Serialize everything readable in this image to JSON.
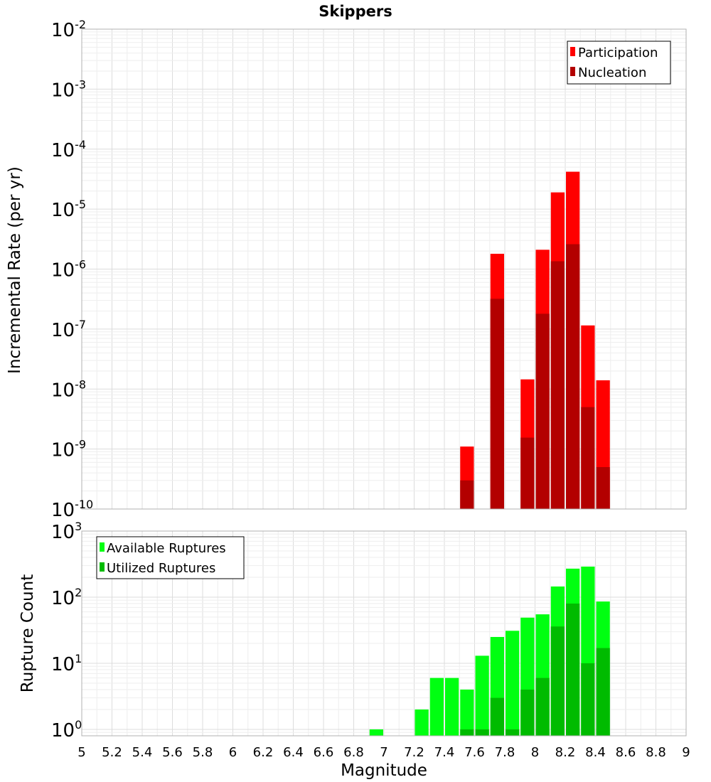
{
  "chart_data": [
    {
      "type": "bar",
      "title": "Skippers",
      "xlabel": "",
      "ylabel": "Incremental Rate (per yr)",
      "yscale": "log",
      "ylim": [
        1e-10,
        0.01
      ],
      "xlim": [
        5,
        9
      ],
      "bar_width": 0.1,
      "grid": true,
      "legend_position": "top-right",
      "series": [
        {
          "name": "Participation",
          "color": "#ff0000",
          "x": [
            7.55,
            7.75,
            7.95,
            8.05,
            8.15,
            8.25,
            8.35,
            8.45
          ],
          "values": [
            1.1e-09,
            1.8e-06,
            1.45e-08,
            2.1e-06,
            1.9e-05,
            4.2e-05,
            1.15e-07,
            1.4e-08
          ]
        },
        {
          "name": "Nucleation",
          "color": "#b30000",
          "x": [
            7.55,
            7.75,
            7.95,
            8.05,
            8.15,
            8.25,
            8.35,
            8.45
          ],
          "values": [
            3e-10,
            3.2e-07,
            1.55e-09,
            1.8e-07,
            1.35e-06,
            2.6e-06,
            5e-09,
            5e-10
          ]
        }
      ],
      "yticks": [
        {
          "base": "10",
          "exp": "-2"
        },
        {
          "base": "10",
          "exp": "-3"
        },
        {
          "base": "10",
          "exp": "-4"
        },
        {
          "base": "10",
          "exp": "-5"
        },
        {
          "base": "10",
          "exp": "-6"
        },
        {
          "base": "10",
          "exp": "-7"
        },
        {
          "base": "10",
          "exp": "-8"
        },
        {
          "base": "10",
          "exp": "-9"
        },
        {
          "base": "10",
          "exp": "-10"
        }
      ]
    },
    {
      "type": "bar",
      "title": "",
      "xlabel": "Magnitude",
      "ylabel": "Rupture Count",
      "yscale": "log",
      "ylim": [
        0.8,
        1000
      ],
      "xlim": [
        5,
        9
      ],
      "bar_width": 0.1,
      "grid": true,
      "legend_position": "top-left",
      "series": [
        {
          "name": "Available Ruptures",
          "color": "#00ff11",
          "x": [
            6.95,
            7.25,
            7.35,
            7.45,
            7.55,
            7.65,
            7.75,
            7.85,
            7.95,
            8.05,
            8.15,
            8.25,
            8.35,
            8.45
          ],
          "values": [
            1,
            2,
            6,
            6,
            4,
            13,
            25,
            31,
            49,
            55,
            145,
            270,
            290,
            86
          ]
        },
        {
          "name": "Utilized Ruptures",
          "color": "#00bb00",
          "x": [
            7.55,
            7.65,
            7.75,
            7.85,
            7.95,
            8.05,
            8.15,
            8.25,
            8.35,
            8.45
          ],
          "values": [
            1,
            1,
            3,
            1,
            4,
            6,
            36,
            80,
            10,
            17
          ]
        }
      ],
      "yticks": [
        {
          "base": "10",
          "exp": "3"
        },
        {
          "base": "10",
          "exp": "2"
        },
        {
          "base": "10",
          "exp": "1"
        },
        {
          "base": "10",
          "exp": "0"
        }
      ],
      "xticks": [
        "5",
        "5.2",
        "5.4",
        "5.6",
        "5.8",
        "6",
        "6.2",
        "6.4",
        "6.6",
        "6.8",
        "7",
        "7.2",
        "7.4",
        "7.6",
        "7.8",
        "8",
        "8.2",
        "8.4",
        "8.6",
        "8.8",
        "9"
      ]
    }
  ]
}
